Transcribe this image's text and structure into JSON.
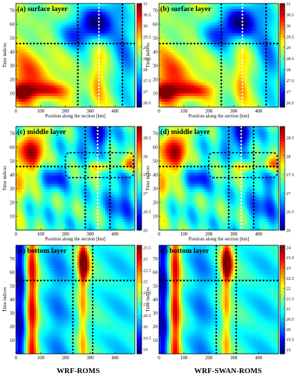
{
  "figure": {
    "column_titles": [
      "WRF-ROMS",
      "WRF-SWAN-ROMS"
    ]
  },
  "chart_data": [
    {
      "type": "heatmap",
      "title": "(a) surface layer",
      "xlabel": "Position along the section [km]",
      "ylabel": "Time indices",
      "xlim": [
        0,
        480
      ],
      "ylim": [
        0,
        75
      ],
      "xticks": [
        0,
        100,
        200,
        300,
        400
      ],
      "yticks": [
        10,
        20,
        30,
        40,
        50,
        60,
        70
      ],
      "colorbar": {
        "min": 26.3,
        "max": 31,
        "ticks": [
          26.5,
          27,
          27.5,
          28,
          28.5,
          29,
          29.5,
          30,
          30.5,
          31
        ]
      },
      "vlines_black": [
        250,
        430
      ],
      "hlines_black": [
        46
      ],
      "vlines_white": [
        335
      ],
      "field": "surface"
    },
    {
      "type": "heatmap",
      "title": "(b) surface layer",
      "xlabel": "Position along the section [km]",
      "ylabel": "Time indices",
      "xlim": [
        0,
        480
      ],
      "ylim": [
        0,
        75
      ],
      "xticks": [
        0,
        100,
        200,
        300,
        400
      ],
      "yticks": [
        10,
        20,
        30,
        40,
        50,
        60,
        70
      ],
      "colorbar": {
        "min": 26.3,
        "max": 31,
        "ticks": [
          26.5,
          27,
          27.5,
          28,
          28.5,
          29,
          29.5,
          30,
          30.5,
          31
        ]
      },
      "vlines_black": [
        250,
        430
      ],
      "hlines_black": [
        46
      ],
      "vlines_white": [
        335
      ],
      "field": "surface"
    },
    {
      "type": "heatmap",
      "title": "(c) middle layer",
      "xlabel": "Position along the section [km]",
      "ylabel": "Time indices",
      "xlim": [
        0,
        480
      ],
      "ylim": [
        0,
        75
      ],
      "xticks": [
        0,
        100,
        200,
        300,
        400
      ],
      "yticks": [
        10,
        20,
        30,
        40,
        50,
        60,
        70
      ],
      "colorbar": {
        "min": 26,
        "max": 28.8,
        "ticks": [
          26,
          26.5,
          27,
          27.5,
          28,
          28.5
        ]
      },
      "vlines_black": [
        280,
        380
      ],
      "hlines_black": [
        46
      ],
      "vlines_white": [
        330
      ],
      "dashed_box": [
        200,
        38,
        480,
        56
      ],
      "field": "middle"
    },
    {
      "type": "heatmap",
      "title": "(d) middle layer",
      "xlabel": "Position along the section [km]",
      "ylabel": "Time indices",
      "xlim": [
        0,
        480
      ],
      "ylim": [
        0,
        75
      ],
      "xticks": [
        0,
        100,
        200,
        300,
        400
      ],
      "yticks": [
        10,
        20,
        30,
        40,
        50,
        60,
        70
      ],
      "colorbar": {
        "min": 26,
        "max": 28.8,
        "ticks": [
          26,
          26.5,
          27,
          27.5,
          28,
          28.5
        ]
      },
      "vlines_black": [
        280,
        380
      ],
      "hlines_black": [
        46
      ],
      "vlines_white": [
        330
      ],
      "dashed_box": [
        200,
        38,
        480,
        56
      ],
      "field": "middle"
    },
    {
      "type": "heatmap",
      "title": "(e) bottom layer",
      "xlabel": "",
      "ylabel": "Time indices",
      "xlim": [
        0,
        480
      ],
      "ylim": [
        0,
        80
      ],
      "xticks": [
        0,
        100,
        200,
        300,
        400
      ],
      "yticks": [
        10,
        20,
        30,
        40,
        50,
        60,
        70
      ],
      "colorbar": {
        "min": 18.8,
        "max": 23.6,
        "ticks": [
          19,
          19.5,
          20,
          20.5,
          21,
          21.5,
          22,
          22.5,
          23,
          23.5
        ]
      },
      "vlines_black": [
        230,
        310
      ],
      "hlines_black": [
        54
      ],
      "vlines_white": [],
      "field": "bottom"
    },
    {
      "type": "heatmap",
      "title": "(f) bottom layer",
      "xlabel": "",
      "ylabel": "Time indices",
      "xlim": [
        0,
        480
      ],
      "ylim": [
        0,
        80
      ],
      "xticks": [
        0,
        100,
        200,
        300,
        400
      ],
      "yticks": [
        10,
        20,
        30,
        40,
        50,
        60,
        70
      ],
      "colorbar": {
        "min": 18.8,
        "max": 24.1,
        "ticks": [
          19,
          19.5,
          20,
          20.5,
          21,
          21.5,
          22,
          22.5,
          23,
          23.5,
          24
        ]
      },
      "vlines_black": [
        230,
        310
      ],
      "hlines_black": [
        54
      ],
      "vlines_white": [],
      "field": "bottom"
    }
  ]
}
